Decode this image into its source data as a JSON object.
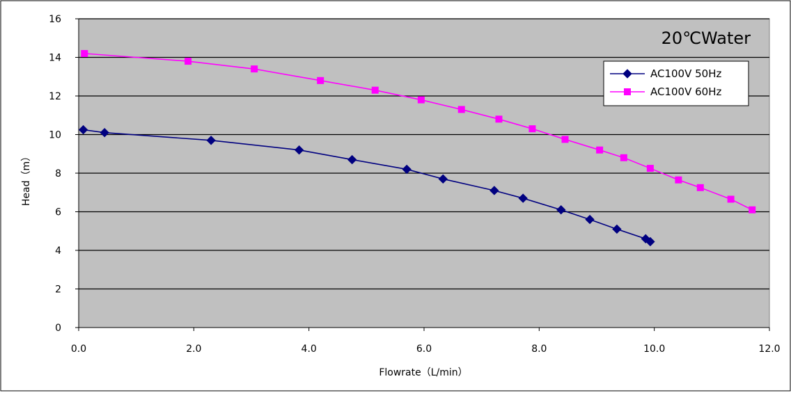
{
  "chart_data": {
    "type": "line",
    "title": "20℃Water",
    "xlabel": "Flowrate（L/min）",
    "ylabel": "Head（m）",
    "xlim": [
      0,
      12
    ],
    "ylim": [
      0,
      16
    ],
    "x_ticks": [
      "0.0",
      "2.0",
      "4.0",
      "6.0",
      "8.0",
      "10.0",
      "12.0"
    ],
    "y_ticks": [
      "0",
      "2",
      "4",
      "6",
      "8",
      "10",
      "12",
      "14",
      "16"
    ],
    "grid": "horizontal",
    "legend_position": "top-right",
    "plot_background": "#c0c0c0",
    "series": [
      {
        "name": "AC100V 50Hz",
        "color": "#000080",
        "marker": "diamond",
        "x": [
          0.08,
          0.45,
          2.3,
          3.83,
          4.75,
          5.7,
          6.33,
          7.22,
          7.72,
          8.38,
          8.88,
          9.35,
          9.85,
          9.93
        ],
        "y": [
          10.25,
          10.1,
          9.7,
          9.2,
          8.7,
          8.2,
          7.7,
          7.1,
          6.7,
          6.1,
          5.6,
          5.1,
          4.6,
          4.45
        ]
      },
      {
        "name": "AC100V 60Hz",
        "color": "#ff00ff",
        "marker": "square",
        "x": [
          0.1,
          1.9,
          3.05,
          4.2,
          5.15,
          5.95,
          6.65,
          7.3,
          7.88,
          8.45,
          9.05,
          9.47,
          9.93,
          10.42,
          10.8,
          11.33,
          11.7
        ],
        "y": [
          14.2,
          13.8,
          13.4,
          12.8,
          12.3,
          11.8,
          11.3,
          10.8,
          10.3,
          9.75,
          9.2,
          8.8,
          8.25,
          7.65,
          7.25,
          6.65,
          6.1
        ]
      }
    ]
  }
}
